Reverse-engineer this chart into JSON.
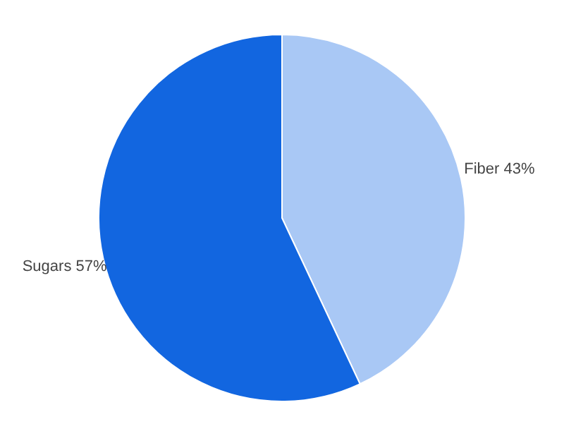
{
  "chart_data": {
    "type": "pie",
    "categories": [
      "Fiber",
      "Sugars"
    ],
    "values": [
      43,
      57
    ],
    "colors": [
      "#a9c8f5",
      "#1266e0"
    ],
    "value_labels": [
      "43%",
      "57%"
    ]
  }
}
